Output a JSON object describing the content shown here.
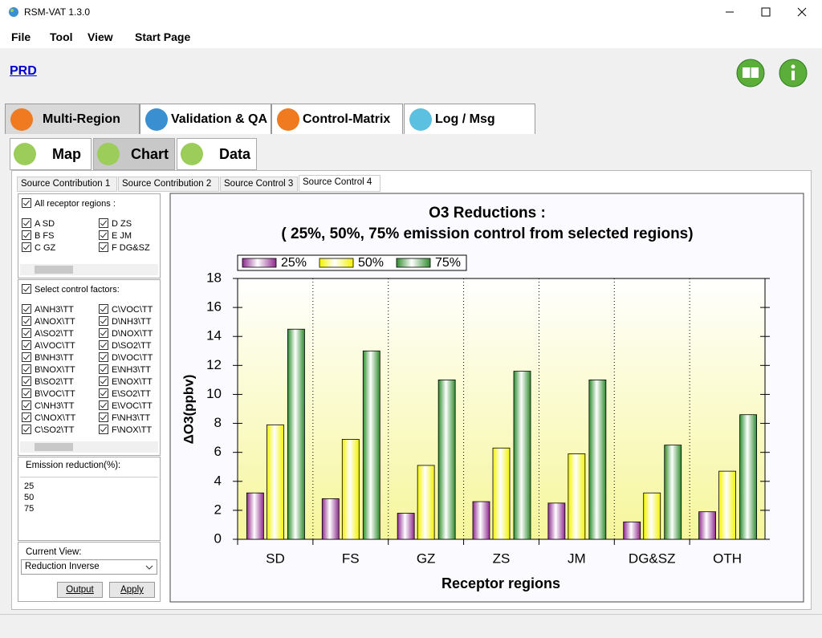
{
  "window": {
    "title": "RSM-VAT 1.3.0"
  },
  "menu": [
    "File",
    "Tool",
    "View",
    "Start Page"
  ],
  "link": "PRD",
  "main_tabs": [
    "Multi-Region",
    "Validation & QA",
    "Control-Matrix",
    "Log / Msg"
  ],
  "sub_tabs": [
    "Map",
    "Chart",
    "Data"
  ],
  "chart_tabs": [
    "Source Contribution 1",
    "Source Contribution 2",
    "Source Control 3",
    "Source Control 4"
  ],
  "receptor_header": "All receptor regions :",
  "receptors": [
    "A SD",
    "D ZS",
    "B FS",
    "E JM",
    "C GZ",
    "F DG&SZ"
  ],
  "factors_header": "Select control factors:",
  "factors": [
    "A\\NH3\\TT",
    "C\\VOC\\TT",
    "A\\NOX\\TT",
    "D\\NH3\\TT",
    "A\\SO2\\TT",
    "D\\NOX\\TT",
    "A\\VOC\\TT",
    "D\\SO2\\TT",
    "B\\NH3\\TT",
    "D\\VOC\\TT",
    "B\\NOX\\TT",
    "E\\NH3\\TT",
    "B\\SO2\\TT",
    "E\\NOX\\TT",
    "B\\VOC\\TT",
    "E\\SO2\\TT",
    "C\\NH3\\TT",
    "E\\VOC\\TT",
    "C\\NOX\\TT",
    "F\\NH3\\TT",
    "C\\SO2\\TT",
    "F\\NOX\\TT"
  ],
  "emission_label": "Emission reduction(%):",
  "emission_values": [
    "25",
    "50",
    "75"
  ],
  "current_view_label": "Current View:",
  "current_view": "Reduction Inverse",
  "buttons": [
    "Output",
    "Apply"
  ],
  "chart_data": {
    "type": "bar",
    "title": "O3 Reductions  :",
    "subtitle": "( 25%, 50%, 75% emission control from selected regions)",
    "x_label": "Receptor regions",
    "y_label": "ΔO3(ppbv)",
    "categories": [
      "SD",
      "FS",
      "GZ",
      "ZS",
      "JM",
      "DG&SZ",
      "OTH"
    ],
    "series": [
      {
        "name": "25%",
        "color": "#8e2a8e",
        "values": [
          3.2,
          2.8,
          1.8,
          2.6,
          2.5,
          1.2,
          1.9
        ]
      },
      {
        "name": "50%",
        "color": "#f2f200",
        "values": [
          7.9,
          6.9,
          5.1,
          6.3,
          5.9,
          3.2,
          4.7
        ]
      },
      {
        "name": "75%",
        "color": "#2e8b2e",
        "values": [
          14.5,
          13.0,
          11.0,
          11.6,
          11.0,
          6.5,
          8.6
        ]
      }
    ],
    "ylim": [
      0,
      18
    ],
    "yticks": [
      0,
      2,
      4,
      6,
      8,
      10,
      12,
      14,
      16,
      18
    ],
    "grid": true
  }
}
